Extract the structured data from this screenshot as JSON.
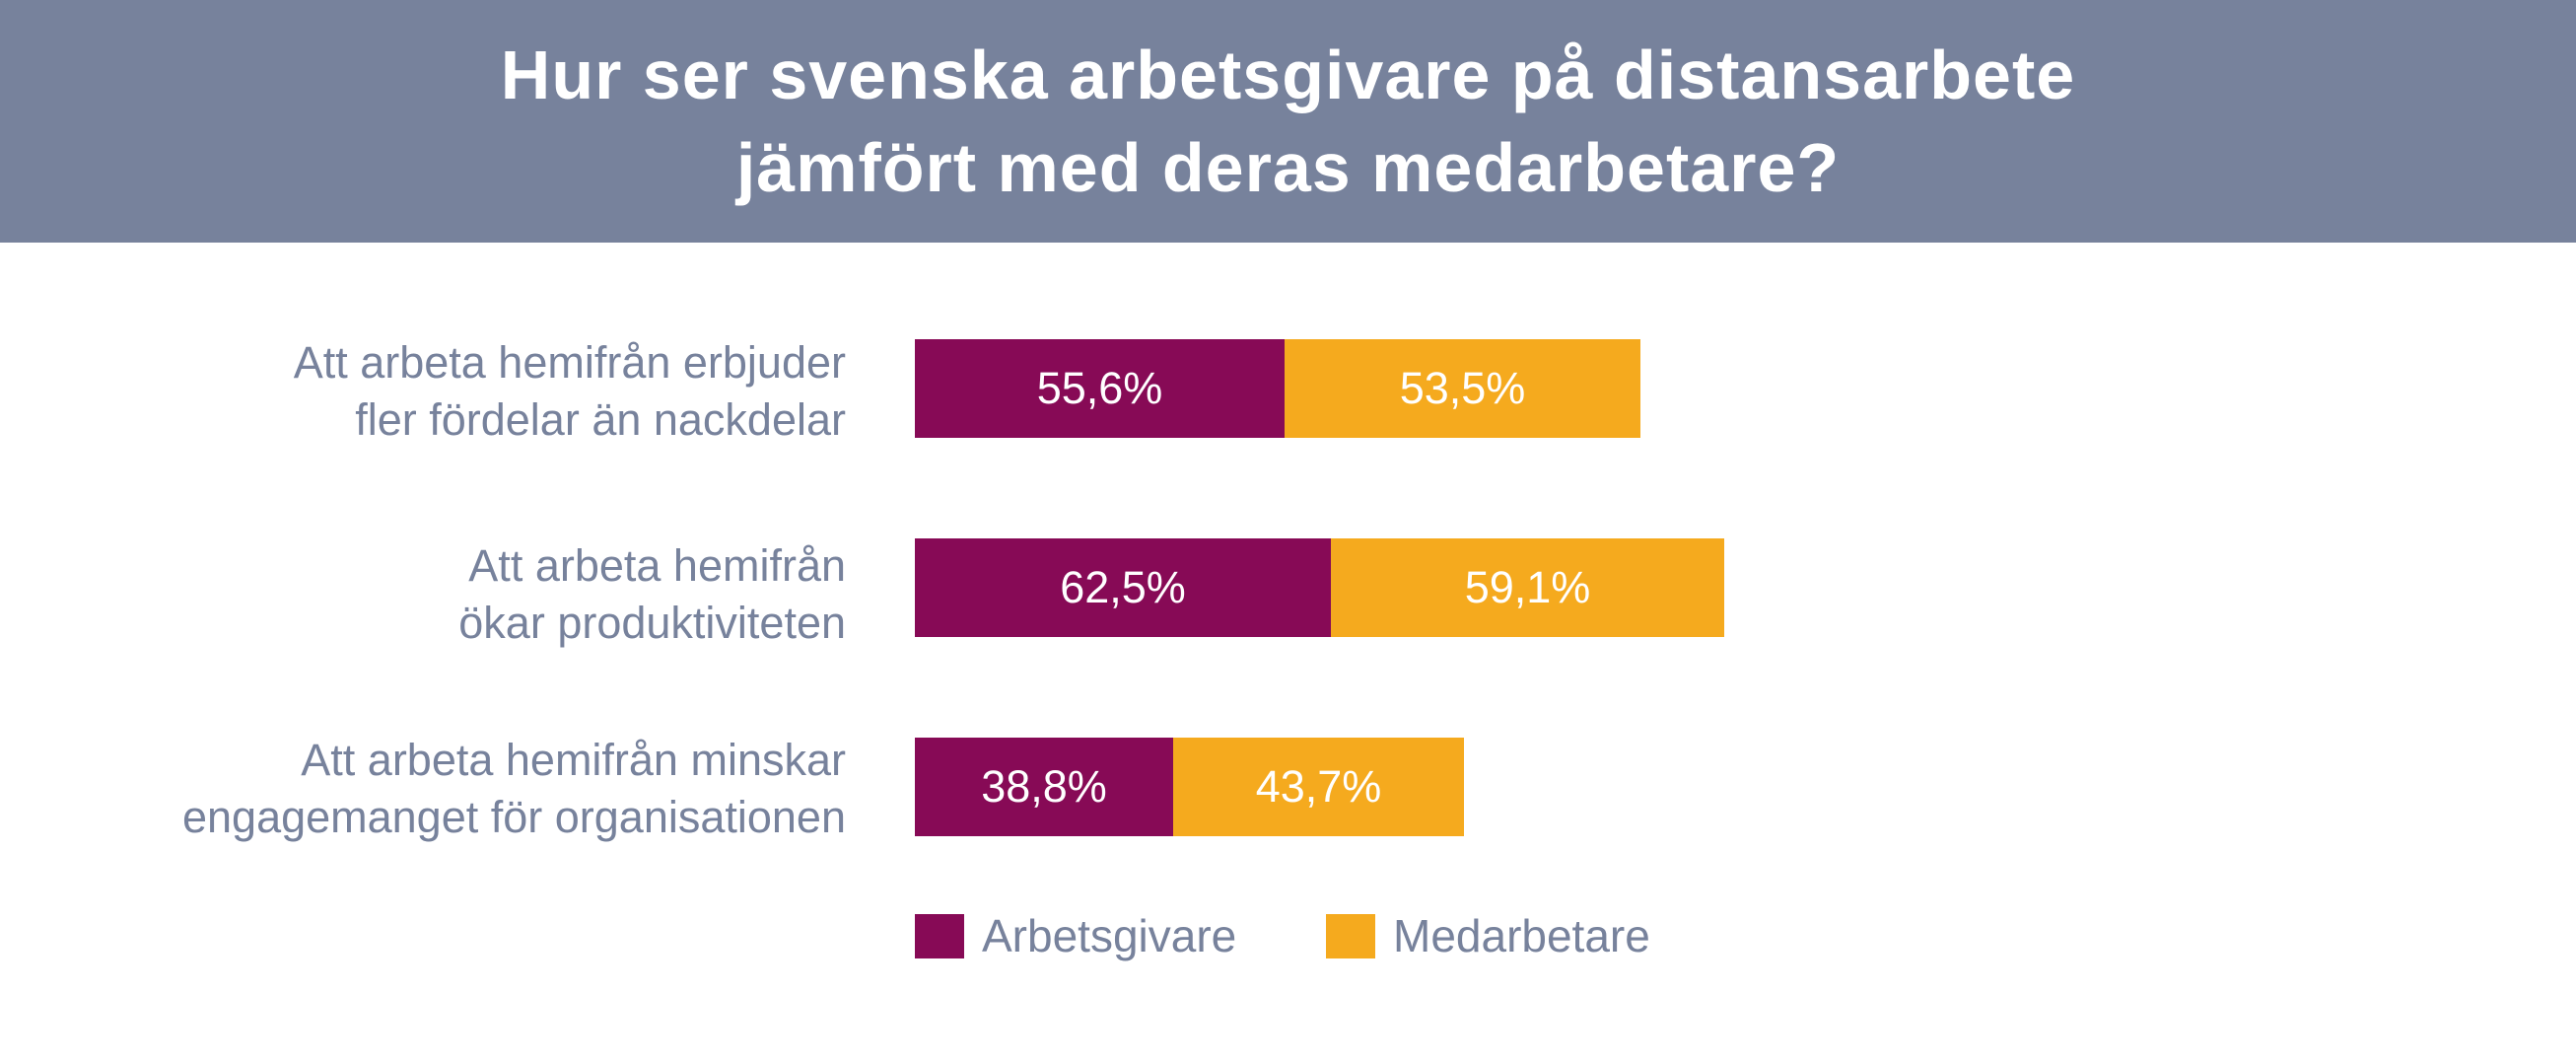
{
  "header": {
    "title_line1": "Hur ser svenska arbetsgivare på distansarbete",
    "title_line2": "jämfört med deras medarbetare?"
  },
  "colors": {
    "header_bg": "#77829c",
    "label": "#77829c",
    "arbetsgivare": "#870a56",
    "medarbetare": "#f5aa1e"
  },
  "chart_data": {
    "type": "bar",
    "orientation": "horizontal",
    "stacked": true,
    "title": "Hur ser svenska arbetsgivare på distansarbete jämfört med deras medarbetare?",
    "categories": [
      [
        "Att arbeta hemifrån erbjuder",
        "fler fördelar än nackdelar"
      ],
      [
        "Att arbeta hemifrån",
        "ökar produktiviteten"
      ],
      [
        "Att arbeta hemifrån minskar",
        "engagemanget för organisationen"
      ]
    ],
    "series": [
      {
        "name": "Arbetsgivare",
        "color": "#870a56",
        "values": [
          55.6,
          62.5,
          38.8
        ],
        "labels": [
          "55,6%",
          "62,5%",
          "38,8%"
        ]
      },
      {
        "name": "Medarbetare",
        "color": "#f5aa1e",
        "values": [
          53.5,
          59.1,
          43.7
        ],
        "labels": [
          "53,5%",
          "59,1%",
          "43,7%"
        ]
      }
    ],
    "value_unit": "%",
    "xlabel": "",
    "ylabel": "",
    "grid": false,
    "legend": "bottom-center"
  },
  "legend": {
    "items": [
      {
        "label": "Arbetsgivare",
        "color": "#870a56"
      },
      {
        "label": "Medarbetare",
        "color": "#f5aa1e"
      }
    ]
  }
}
